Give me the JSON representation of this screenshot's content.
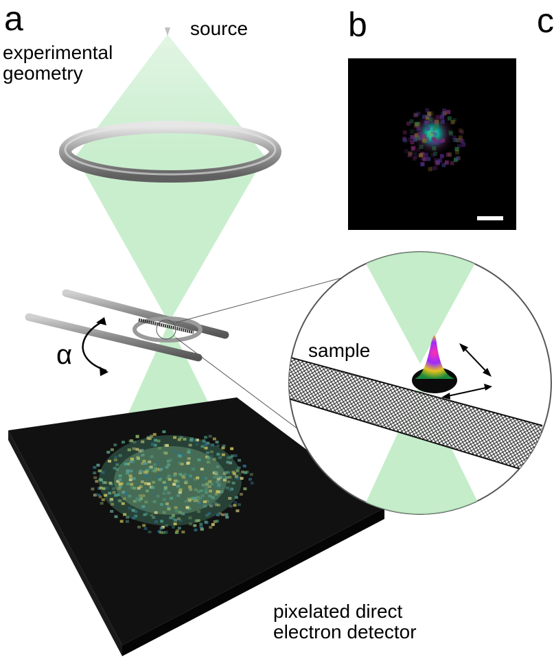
{
  "panels": {
    "a": "a",
    "b": "b",
    "c": "c"
  },
  "labels": {
    "source": "source",
    "experimental_geometry": "experimental\ngeometry",
    "alpha": "α",
    "sample": "sample",
    "detector": "pixelated direct\nelectron detector"
  },
  "colors": {
    "beam": "#b7e8bd",
    "detector": "#0b0b0b",
    "image_bg": "#000000",
    "scale_bar": "#ffffff"
  },
  "icons": [
    "ring-lens",
    "tilt-rods",
    "nanotube",
    "beam-cone",
    "rotation-arrow",
    "double-arrow",
    "probe-peak"
  ]
}
